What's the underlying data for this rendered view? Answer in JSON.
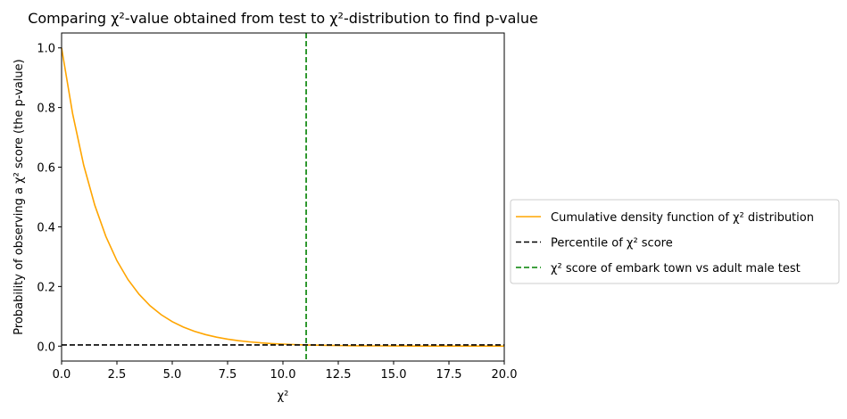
{
  "chart_data": {
    "type": "line",
    "title": "Comparing χ²-value obtained from test to χ²-distribution to find p-value",
    "xlabel": "χ²",
    "ylabel": "Probability of observing a χ² score (the p-value)",
    "xlim": [
      0,
      20
    ],
    "ylim": [
      -0.05,
      1.05
    ],
    "xticks": [
      0,
      2.5,
      5,
      7.5,
      10,
      12.5,
      15,
      17.5,
      20
    ],
    "xtick_labels": [
      "0.0",
      "2.5",
      "5.0",
      "7.5",
      "10.0",
      "12.5",
      "15.0",
      "17.5",
      "20.0"
    ],
    "yticks": [
      0,
      0.2,
      0.4,
      0.6,
      0.8,
      1.0
    ],
    "ytick_labels": [
      "0.0",
      "0.2",
      "0.4",
      "0.6",
      "0.8",
      "1.0"
    ],
    "grid": false,
    "legend_position": "outside-right",
    "series": [
      {
        "name": "Cumulative density function of χ² distribution",
        "color": "#ffa500",
        "style": "solid",
        "x": [
          0,
          0.5,
          1,
          1.5,
          2,
          2.5,
          3,
          3.5,
          4,
          4.5,
          5,
          5.5,
          6,
          6.5,
          7,
          7.5,
          8,
          8.5,
          9,
          9.5,
          10,
          10.5,
          11,
          11.5,
          12,
          12.5,
          13,
          13.5,
          14,
          14.5,
          15,
          15.5,
          16,
          16.5,
          17,
          17.5,
          18,
          18.5,
          19,
          19.5,
          20
        ],
        "y": [
          1,
          0.7788,
          0.6065,
          0.4724,
          0.3679,
          0.2865,
          0.2231,
          0.1738,
          0.1353,
          0.1054,
          0.0821,
          0.0639,
          0.0498,
          0.0388,
          0.0302,
          0.0235,
          0.0183,
          0.0143,
          0.0111,
          0.0087,
          0.0067,
          0.0052,
          0.0041,
          0.0032,
          0.0025,
          0.0019,
          0.0015,
          0.0012,
          0.0009,
          0.0007,
          0.0006,
          0.0004,
          0.0003,
          0.0003,
          0.0002,
          0.0002,
          0.0001,
          0.0001,
          0.0001,
          0.0001,
          0.0
        ]
      },
      {
        "name": "Percentile of χ² score",
        "color": "#000000",
        "style": "dashed",
        "hline": 0.004
      },
      {
        "name": "χ² score of embark town vs adult male test",
        "color": "#008000",
        "style": "dashed",
        "vline": 11.05
      }
    ]
  }
}
